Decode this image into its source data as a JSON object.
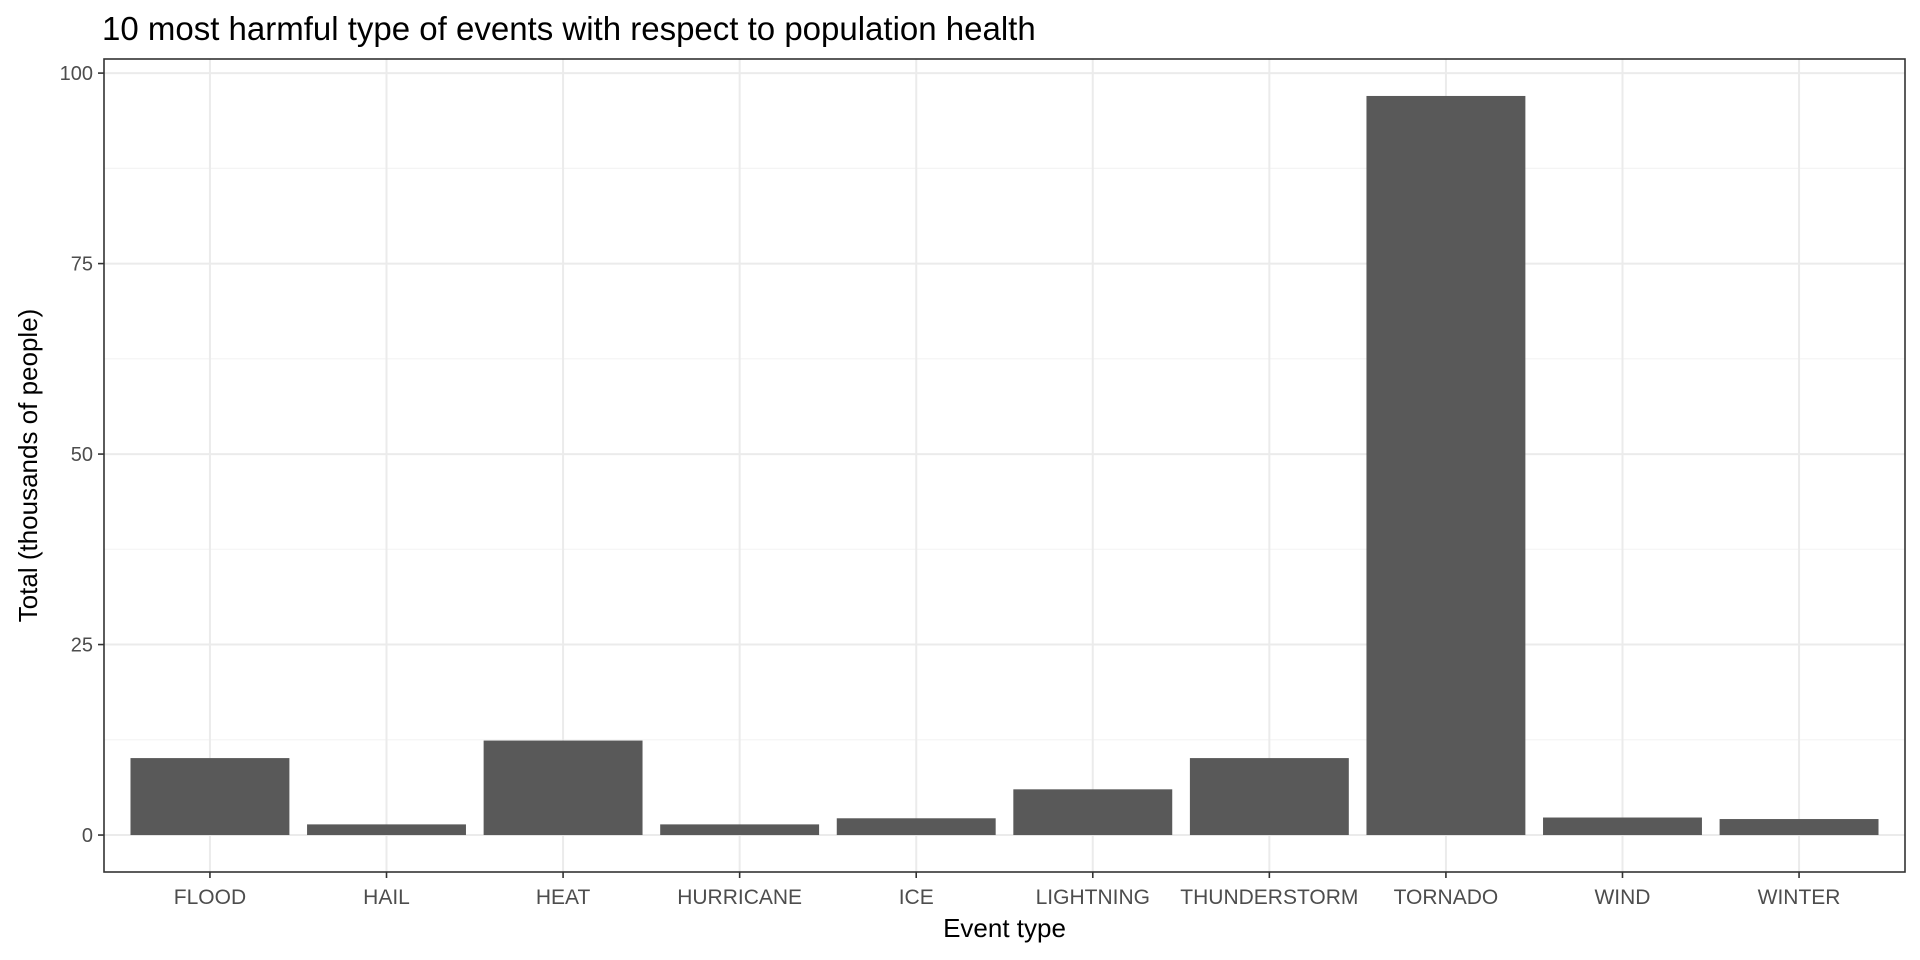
{
  "chart_data": {
    "type": "bar",
    "title": "10 most harmful type of events with respect to population health",
    "xlabel": "Event type",
    "ylabel": "Total (thousands of people)",
    "categories": [
      "FLOOD",
      "HAIL",
      "HEAT",
      "HURRICANE",
      "ICE",
      "LIGHTNING",
      "THUNDERSTORM",
      "TORNADO",
      "WIND",
      "WINTER"
    ],
    "values": [
      10.1,
      1.4,
      12.4,
      1.4,
      2.2,
      6.0,
      10.1,
      97.0,
      2.3,
      2.1
    ],
    "ylim": [
      -4.85,
      101.85
    ],
    "yticks": [
      0,
      25,
      50,
      75,
      100
    ],
    "ytick_labels": [
      "0",
      "25",
      "50",
      "75",
      "100"
    ],
    "grid": true,
    "legend": "none",
    "colors": {
      "bar": "#595959",
      "grid_major": "#ebebeb",
      "grid_minor": "#f4f4f4",
      "panel_border": "#333333",
      "tick_text": "#4d4d4d",
      "axis_title": "#000000"
    }
  }
}
